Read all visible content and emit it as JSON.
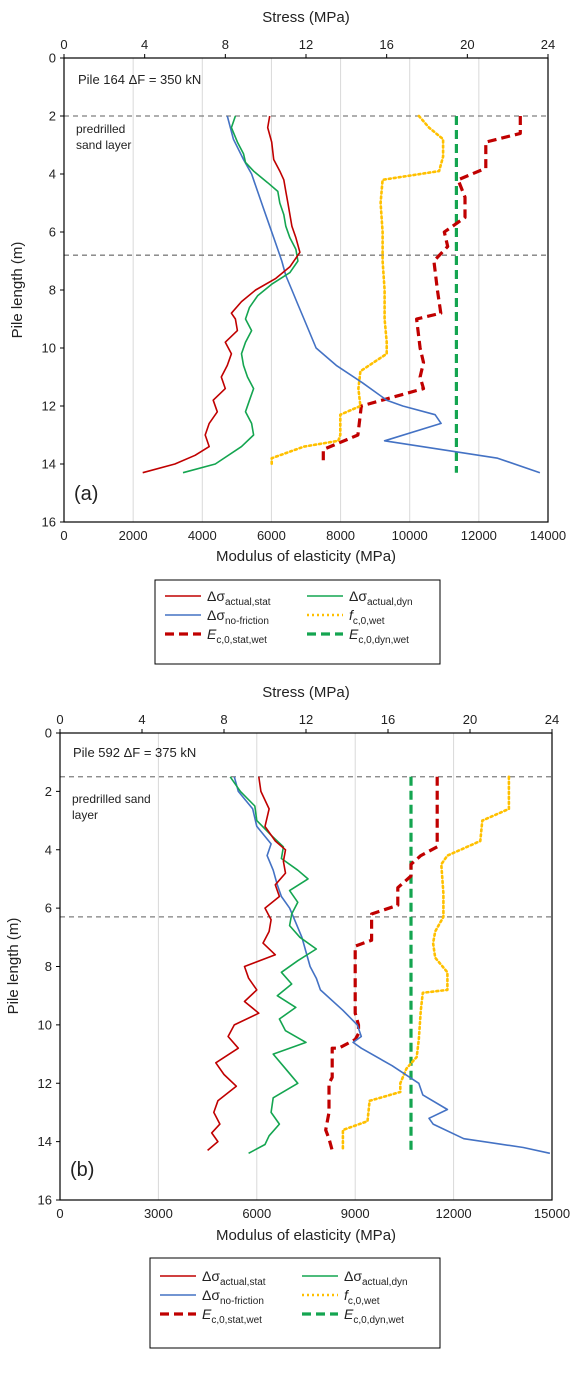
{
  "chart_data": [
    {
      "type": "line",
      "panel_label": "(a)",
      "annotation": "Pile 164  ΔF = 350 kN",
      "region_label": [
        "predrilled",
        "sand layer"
      ],
      "reference_lines_y": [
        2.0,
        6.8
      ],
      "top_axis": {
        "label": "Stress (MPa)",
        "range": [
          0,
          24
        ],
        "ticks": [
          0,
          4,
          8,
          12,
          16,
          20,
          24
        ]
      },
      "bottom_axis": {
        "label": "Modulus of elasticity (MPa)",
        "range": [
          0,
          14000
        ],
        "ticks": [
          0,
          2000,
          4000,
          6000,
          8000,
          10000,
          12000,
          14000
        ]
      },
      "y_axis": {
        "label": "Pile length (m)",
        "range": [
          0,
          16
        ],
        "ticks": [
          0,
          2,
          4,
          6,
          8,
          10,
          12,
          14,
          16
        ],
        "inverted": true
      },
      "grid": "vertical",
      "series": [
        {
          "name": "Δσactual,stat",
          "sub": "actual,stat",
          "color": "#c00000",
          "dash": "solid",
          "axis": "stress",
          "x": [
            10.2,
            10.1,
            10.3,
            10.4,
            10.7,
            10.9,
            11.0,
            11.1,
            11.2,
            11.3,
            11.5,
            11.7,
            11.2,
            10.5,
            9.5,
            8.8,
            8.3,
            8.5,
            8.6,
            8.0,
            8.3,
            8.1,
            7.8,
            8.0,
            7.4,
            7.6,
            7.2,
            7.0,
            7.2,
            6.5,
            5.5,
            3.9
          ],
          "y": [
            2.0,
            2.4,
            2.9,
            3.5,
            3.9,
            4.2,
            4.6,
            5.0,
            5.4,
            5.8,
            6.2,
            6.7,
            7.2,
            7.6,
            8.0,
            8.4,
            8.8,
            9.0,
            9.4,
            9.8,
            10.2,
            10.6,
            11.0,
            11.4,
            11.8,
            12.2,
            12.6,
            13.0,
            13.4,
            13.7,
            14.0,
            14.3
          ]
        },
        {
          "name": "Δσactual,dyn",
          "sub": "actual,dyn",
          "color": "#14a550",
          "dash": "solid",
          "axis": "stress",
          "x": [
            8.5,
            8.3,
            8.6,
            8.9,
            9.0,
            9.4,
            10.1,
            10.6,
            10.7,
            10.9,
            11.0,
            11.2,
            11.5,
            11.6,
            11.2,
            10.3,
            9.6,
            9.2,
            9.0,
            9.3,
            9.0,
            8.8,
            8.9,
            9.1,
            9.4,
            9.2,
            9.0,
            9.3,
            9.4,
            8.8,
            7.5,
            5.9
          ],
          "y": [
            2.0,
            2.4,
            2.9,
            3.3,
            3.6,
            3.9,
            4.3,
            4.6,
            5.0,
            5.4,
            5.8,
            6.2,
            6.6,
            7.0,
            7.4,
            7.8,
            8.2,
            8.6,
            9.0,
            9.4,
            9.8,
            10.2,
            10.6,
            11.0,
            11.4,
            11.8,
            12.2,
            12.6,
            13.0,
            13.4,
            14.0,
            14.3
          ]
        },
        {
          "name": "Δσno-friction",
          "sub": "no-friction",
          "color": "#4472c4",
          "dash": "solid",
          "axis": "stress",
          "x": [
            8.1,
            8.4,
            8.9,
            9.3,
            9.6,
            9.9,
            10.2,
            10.5,
            10.8,
            11.0,
            11.3,
            11.6,
            11.9,
            12.5,
            13.5,
            14.8,
            16.0,
            16.8,
            18.4,
            18.7,
            15.9,
            21.5,
            23.6
          ],
          "y": [
            2.0,
            2.8,
            3.5,
            4.0,
            4.6,
            5.2,
            5.8,
            6.4,
            7.0,
            7.5,
            8.0,
            8.5,
            9.0,
            10.0,
            10.6,
            11.2,
            11.8,
            12.0,
            12.3,
            12.6,
            13.2,
            13.8,
            14.3
          ]
        },
        {
          "name": "fc,0,wet",
          "sub": "c,0,wet",
          "color": "#ffc000",
          "dash": "dotted",
          "axis": "stress",
          "x": [
            17.6,
            18.1,
            18.8,
            18.8,
            18.6,
            15.8,
            15.7,
            15.8,
            15.8,
            15.9,
            15.9,
            16.0,
            16.0,
            14.7,
            14.6,
            14.7,
            13.7,
            13.7,
            13.6,
            11.9,
            10.3,
            10.3
          ],
          "y": [
            2.0,
            2.4,
            2.8,
            3.4,
            3.9,
            4.2,
            5.0,
            6.0,
            7.0,
            8.0,
            9.0,
            9.8,
            10.2,
            10.8,
            11.4,
            12.0,
            12.3,
            13.0,
            13.2,
            13.4,
            13.8,
            14.0
          ]
        },
        {
          "name": "Ec,0,stat,wet",
          "sub": "c,0,stat,wet",
          "color": "#c00000",
          "dash": "dashed",
          "axis": "modulus",
          "x": [
            13200,
            13200,
            12200,
            12200,
            11400,
            11600,
            11600,
            11000,
            11100,
            10700,
            10800,
            10900,
            10200,
            10300,
            10400,
            10300,
            10400,
            8600,
            8500,
            7500,
            7500
          ],
          "y": [
            2.0,
            2.6,
            2.9,
            3.8,
            4.2,
            4.8,
            5.5,
            6.0,
            6.5,
            7.0,
            8.0,
            8.8,
            9.0,
            10.0,
            10.5,
            11.0,
            11.4,
            12.0,
            13.0,
            13.5,
            14.0
          ]
        },
        {
          "name": "Ec,0,dyn,wet",
          "sub": "c,0,dyn,wet",
          "color": "#14a550",
          "dash": "dashed",
          "axis": "modulus",
          "x": [
            11350,
            11350
          ],
          "y": [
            2.0,
            14.3
          ]
        }
      ]
    },
    {
      "type": "line",
      "panel_label": "(b)",
      "annotation": "Pile 592  ΔF = 375 kN",
      "region_label": [
        "predrilled sand",
        "layer"
      ],
      "reference_lines_y": [
        1.5,
        6.3
      ],
      "top_axis": {
        "label": "Stress (MPa)",
        "range": [
          0,
          24
        ],
        "ticks": [
          0,
          4,
          8,
          12,
          16,
          20,
          24
        ]
      },
      "bottom_axis": {
        "label": "Modulus of elasticity (MPa)",
        "range": [
          0,
          15000
        ],
        "ticks": [
          0,
          3000,
          6000,
          9000,
          12000,
          15000
        ]
      },
      "y_axis": {
        "label": "Pile length (m)",
        "range": [
          0,
          16
        ],
        "ticks": [
          0,
          2,
          4,
          6,
          8,
          10,
          12,
          14,
          16
        ],
        "inverted": true
      },
      "grid": "vertical",
      "series": [
        {
          "name": "Δσactual,stat",
          "sub": "actual,stat",
          "color": "#c00000",
          "dash": "solid",
          "axis": "stress",
          "x": [
            9.7,
            9.8,
            10.2,
            10.0,
            10.5,
            11.0,
            10.9,
            11.0,
            10.5,
            10.7,
            10.0,
            10.3,
            10.2,
            9.9,
            10.5,
            9.0,
            9.2,
            9.6,
            9.0,
            9.7,
            8.5,
            8.2,
            8.7,
            7.6,
            8.0,
            8.6,
            7.7,
            7.5,
            7.8,
            7.4,
            7.7,
            7.2
          ],
          "y": [
            1.5,
            2.0,
            2.6,
            3.2,
            3.7,
            4.0,
            4.4,
            4.8,
            5.2,
            5.6,
            6.0,
            6.4,
            6.8,
            7.2,
            7.6,
            8.0,
            8.4,
            8.8,
            9.2,
            9.6,
            10.0,
            10.4,
            10.8,
            11.3,
            11.7,
            12.1,
            12.6,
            13.0,
            13.4,
            13.7,
            14.0,
            14.3
          ]
        },
        {
          "name": "Δσactual,dyn",
          "sub": "actual,dyn",
          "color": "#14a550",
          "dash": "solid",
          "axis": "stress",
          "x": [
            8.3,
            8.8,
            9.5,
            9.6,
            10.3,
            10.9,
            10.8,
            11.6,
            12.1,
            11.2,
            11.6,
            11.3,
            11.2,
            11.7,
            12.5,
            11.6,
            10.8,
            11.3,
            10.6,
            11.5,
            10.7,
            11.0,
            12.0,
            10.4,
            11.0,
            11.6,
            10.4,
            10.3,
            10.7,
            10.2,
            10.0,
            9.2
          ],
          "y": [
            1.5,
            2.0,
            2.5,
            3.0,
            3.5,
            3.9,
            4.3,
            4.7,
            5.0,
            5.4,
            5.8,
            6.2,
            6.6,
            7.0,
            7.4,
            7.8,
            8.2,
            8.6,
            9.0,
            9.4,
            9.8,
            10.2,
            10.6,
            11.0,
            11.5,
            12.0,
            12.5,
            13.0,
            13.4,
            13.8,
            14.1,
            14.4
          ]
        },
        {
          "name": "Δσno-friction",
          "sub": "no-friction",
          "color": "#4472c4",
          "dash": "solid",
          "axis": "stress",
          "x": [
            8.5,
            8.7,
            9.4,
            9.6,
            10.3,
            10.1,
            10.4,
            10.6,
            10.8,
            11.2,
            11.5,
            11.8,
            12.0,
            12.2,
            12.5,
            12.7,
            13.8,
            14.5,
            14.7,
            14.3,
            14.7,
            16.2,
            17.5,
            17.7,
            18.9,
            18.0,
            18.2,
            19.7,
            22.6,
            23.9
          ],
          "y": [
            1.5,
            2.0,
            2.6,
            3.2,
            3.8,
            4.2,
            4.7,
            5.2,
            5.6,
            6.0,
            6.5,
            7.0,
            7.5,
            8.0,
            8.4,
            8.8,
            9.5,
            10.0,
            10.4,
            10.6,
            10.8,
            11.4,
            12.0,
            12.4,
            12.9,
            13.2,
            13.4,
            13.9,
            14.2,
            14.4
          ]
        },
        {
          "name": "fc,0,wet",
          "sub": "c,0,wet",
          "color": "#ffc000",
          "dash": "dotted",
          "axis": "stress",
          "x": [
            21.9,
            21.9,
            20.6,
            20.5,
            18.9,
            18.6,
            18.7,
            18.7,
            18.3,
            18.2,
            18.3,
            18.9,
            18.9,
            17.7,
            17.6,
            17.5,
            17.4,
            16.9,
            16.6,
            16.6,
            15.1,
            15.0,
            13.8,
            13.8
          ],
          "y": [
            1.5,
            2.6,
            3.0,
            3.7,
            4.2,
            4.5,
            5.5,
            6.3,
            6.8,
            7.2,
            7.7,
            8.2,
            8.8,
            8.9,
            9.5,
            10.5,
            11.1,
            11.5,
            12.0,
            12.3,
            12.6,
            13.3,
            13.6,
            14.3
          ]
        },
        {
          "name": "Ec,0,stat,wet",
          "sub": "c,0,stat,wet",
          "color": "#c00000",
          "dash": "dashed",
          "axis": "modulus",
          "x": [
            11500,
            11500,
            11500,
            11000,
            10700,
            10700,
            10300,
            10300,
            9500,
            9500,
            9000,
            9000,
            9000,
            9000,
            9100,
            9100,
            9000,
            8500,
            8300,
            8300,
            8200,
            8200,
            8100,
            8200,
            8300
          ],
          "y": [
            1.5,
            2.5,
            3.9,
            4.2,
            4.5,
            4.9,
            5.3,
            5.9,
            6.2,
            7.1,
            7.3,
            8.5,
            9.0,
            9.6,
            10.0,
            10.3,
            10.5,
            10.8,
            10.8,
            11.8,
            12.0,
            13.0,
            13.6,
            13.9,
            14.3
          ]
        },
        {
          "name": "Ec,0,dyn,wet",
          "sub": "c,0,dyn,wet",
          "color": "#14a550",
          "dash": "dashed",
          "axis": "modulus",
          "x": [
            10700,
            10700
          ],
          "y": [
            1.5,
            14.3
          ]
        }
      ]
    }
  ],
  "legend_symbols": {
    "delta_sigma": "Δσ",
    "f": "f",
    "E": "E"
  }
}
